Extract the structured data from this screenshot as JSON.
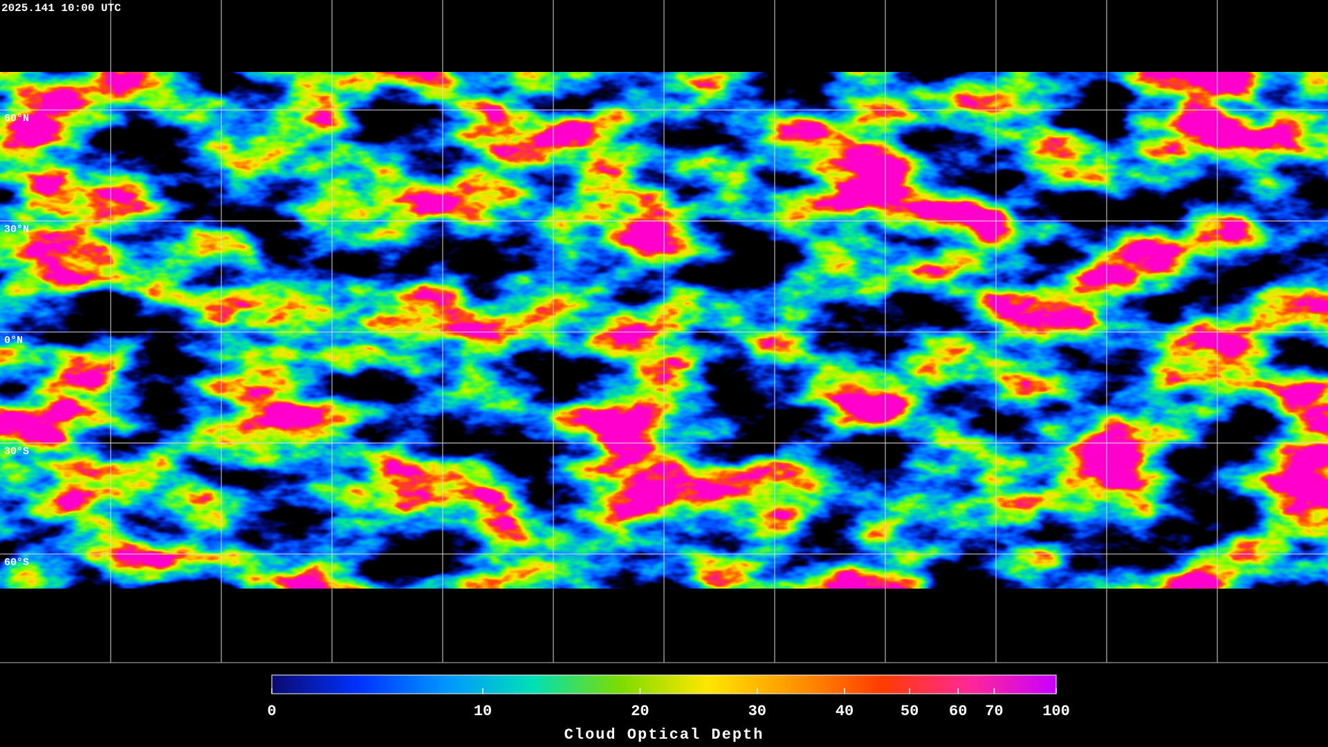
{
  "header": {
    "timestamp": "2025.141 10:00 UTC"
  },
  "map": {
    "lat_labels": [
      "60°N",
      "30°N",
      "0°N",
      "30°S",
      "60°S"
    ]
  },
  "colorbar": {
    "title": "Cloud Optical Depth",
    "range": [
      0,
      100
    ],
    "ticks": [
      0,
      10,
      20,
      30,
      40,
      50,
      60,
      70,
      100
    ],
    "colors": [
      "#0a0a6e",
      "#0032ff",
      "#0096ff",
      "#00e0b4",
      "#7ddc00",
      "#ffe600",
      "#ff9600",
      "#ff3c00",
      "#ff2896",
      "#c800ff"
    ]
  }
}
